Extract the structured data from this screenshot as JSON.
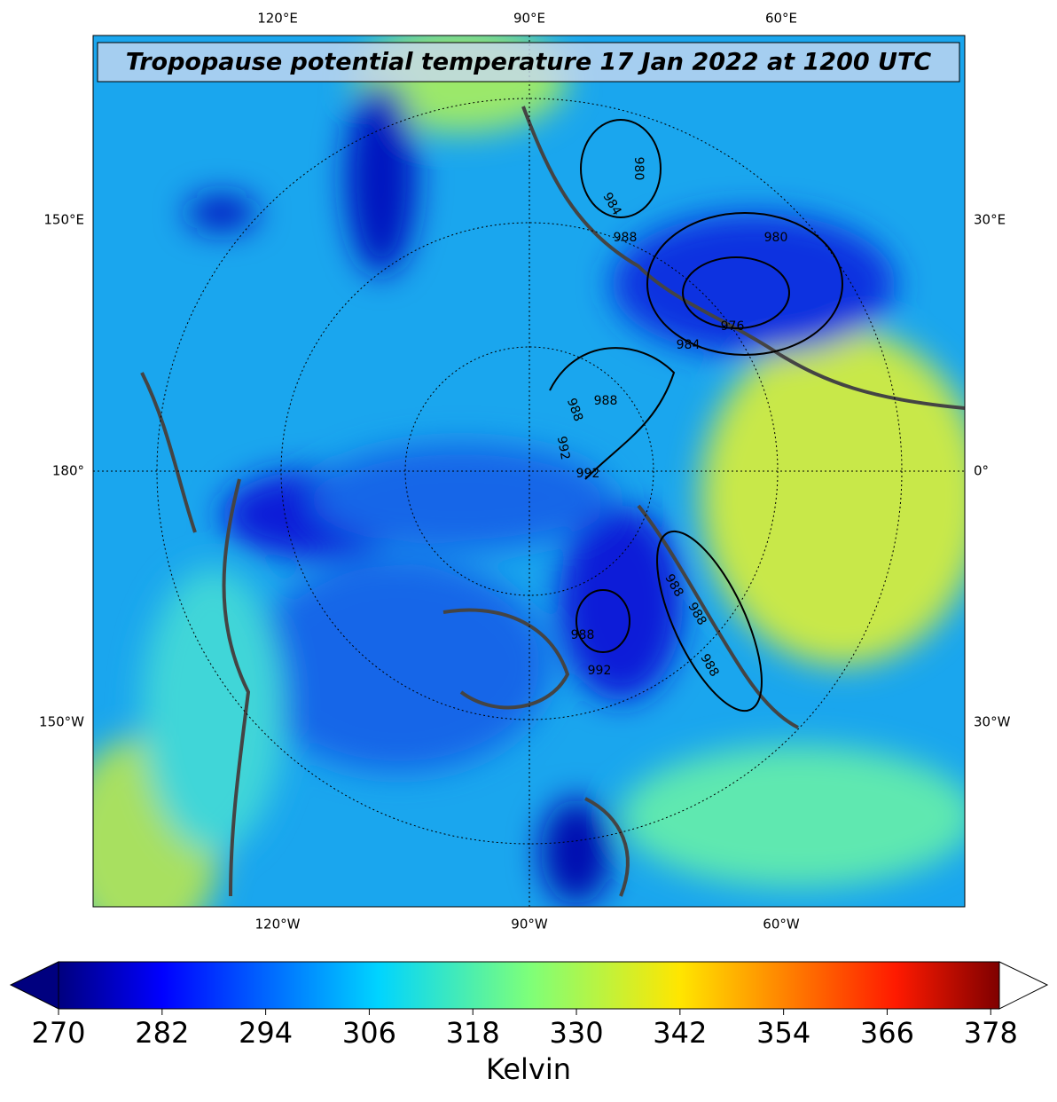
{
  "title": "Tropopause potential temperature 17 Jan 2022 at 1200 UTC",
  "longitude_labels": {
    "top": [
      "120°E",
      "90°E",
      "60°E"
    ],
    "left": [
      "150°E",
      "180°",
      "150°W"
    ],
    "right": [
      "30°E",
      "0°",
      "30°W"
    ],
    "bottom": [
      "120°W",
      "90°W",
      "60°W"
    ]
  },
  "pressure_contour_labels": [
    "980",
    "984",
    "988",
    "980",
    "976",
    "984",
    "988",
    "988",
    "992",
    "992",
    "988",
    "992",
    "988",
    "988",
    "988"
  ],
  "colorbar": {
    "label": "Kelvin",
    "range": [
      270,
      379
    ],
    "ticks": [
      270,
      282,
      294,
      306,
      318,
      330,
      342,
      354,
      366,
      378
    ]
  }
}
